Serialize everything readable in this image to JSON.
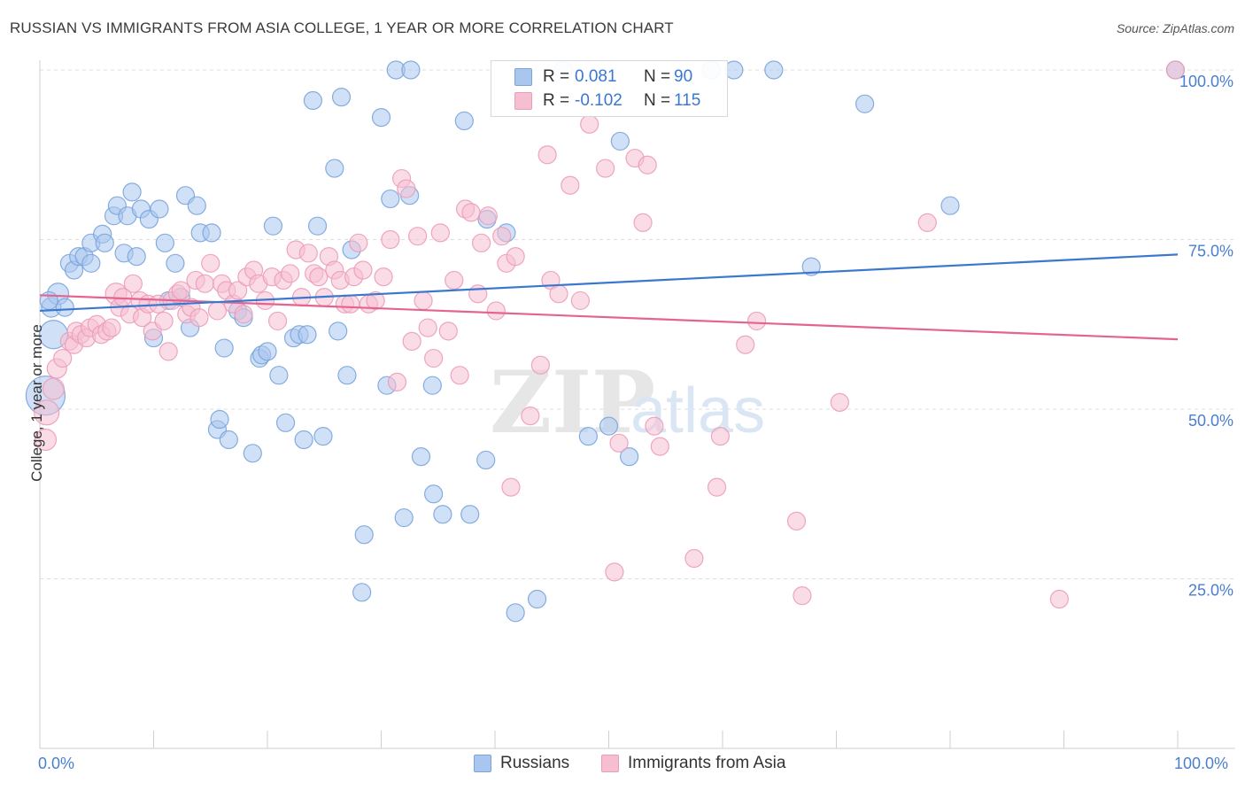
{
  "title": "RUSSIAN VS IMMIGRANTS FROM ASIA COLLEGE, 1 YEAR OR MORE CORRELATION CHART",
  "source_label": "Source: ZipAtlas.com",
  "watermark": {
    "zip": "ZIP",
    "atlas": "atlas"
  },
  "colors": {
    "blue_fill": "#a9c6ee",
    "blue_stroke": "#7aa4dc",
    "blue_line": "#3a78d0",
    "pink_fill": "#f6bfd1",
    "pink_stroke": "#ec9cb7",
    "pink_line": "#e4648f",
    "axis_label": "#4a7fd0",
    "grid": "#dddddd"
  },
  "legend": {
    "rows": [
      {
        "r_label": "R =",
        "r_value": "0.081",
        "n_label": "N =",
        "n_value": "90"
      },
      {
        "r_label": "R =",
        "r_value": "-0.102",
        "n_label": "N =",
        "n_value": "115"
      }
    ]
  },
  "bottom_legend": [
    "Russians",
    "Immigrants from Asia"
  ],
  "chart_data": {
    "type": "scatter",
    "title": "RUSSIAN VS IMMIGRANTS FROM ASIA COLLEGE, 1 YEAR OR MORE CORRELATION CHART",
    "xlabel": "",
    "ylabel": "College, 1 year or more",
    "x_tick_labels": [
      "0.0%",
      "100.0%"
    ],
    "y_tick_labels": [
      "25.0%",
      "50.0%",
      "75.0%",
      "100.0%"
    ],
    "xlim": [
      0,
      100
    ],
    "ylim": [
      0,
      102
    ],
    "grid": true,
    "legend_position": "top-center",
    "series": [
      {
        "name": "Russians",
        "r": 0.081,
        "n": 90,
        "trend": {
          "x": [
            0,
            100
          ],
          "y": [
            64.5,
            72.8
          ]
        },
        "points": [
          [
            0.5,
            52,
            22
          ],
          [
            1.2,
            61,
            16
          ],
          [
            1.0,
            65,
            11
          ],
          [
            1.6,
            67,
            12
          ],
          [
            2.2,
            65,
            10
          ],
          [
            2.6,
            71.5,
            10
          ],
          [
            3.0,
            70.5,
            10
          ],
          [
            3.4,
            72.5,
            10
          ],
          [
            3.9,
            72.5,
            10
          ],
          [
            4.5,
            71.5,
            10
          ],
          [
            4.5,
            74.5,
            10
          ],
          [
            5.5,
            75.8,
            10
          ],
          [
            5.7,
            74.5,
            10
          ],
          [
            6.5,
            78.5,
            10
          ],
          [
            6.8,
            80,
            10
          ],
          [
            7.4,
            73,
            10
          ],
          [
            7.7,
            78.5,
            10
          ],
          [
            8.1,
            82,
            10
          ],
          [
            8.5,
            72.5,
            10
          ],
          [
            8.9,
            79.5,
            10
          ],
          [
            9.6,
            78,
            10
          ],
          [
            10.0,
            60.5,
            10
          ],
          [
            10.5,
            79.5,
            10
          ],
          [
            11.0,
            74.5,
            10
          ],
          [
            11.3,
            66,
            10
          ],
          [
            11.9,
            71.5,
            10
          ],
          [
            12.4,
            66.5,
            10
          ],
          [
            12.8,
            81.5,
            10
          ],
          [
            13.2,
            62,
            10
          ],
          [
            13.8,
            80,
            10
          ],
          [
            14.1,
            76,
            10
          ],
          [
            15.1,
            76,
            10
          ],
          [
            15.6,
            47,
            10
          ],
          [
            15.8,
            48.5,
            10
          ],
          [
            16.2,
            59,
            10
          ],
          [
            16.6,
            45.5,
            10
          ],
          [
            17.4,
            64.5,
            10
          ],
          [
            17.9,
            63.5,
            10
          ],
          [
            18.7,
            43.5,
            10
          ],
          [
            19.3,
            57.5,
            10
          ],
          [
            19.5,
            58,
            10
          ],
          [
            20.0,
            58.5,
            10
          ],
          [
            20.5,
            77,
            10
          ],
          [
            21.0,
            55,
            10
          ],
          [
            21.6,
            48,
            10
          ],
          [
            22.3,
            60.5,
            10
          ],
          [
            22.8,
            61,
            10
          ],
          [
            23.2,
            45.5,
            10
          ],
          [
            23.5,
            61,
            10
          ],
          [
            24.0,
            95.5,
            10
          ],
          [
            24.4,
            77,
            10
          ],
          [
            24.9,
            46,
            10
          ],
          [
            25.9,
            85.5,
            10
          ],
          [
            26.2,
            61.5,
            10
          ],
          [
            26.5,
            96,
            10
          ],
          [
            27.0,
            55,
            10
          ],
          [
            27.4,
            73.5,
            10
          ],
          [
            28.5,
            31.5,
            10
          ],
          [
            28.3,
            23,
            10
          ],
          [
            30.0,
            93,
            10
          ],
          [
            30.5,
            53.5,
            10
          ],
          [
            30.8,
            81,
            10
          ],
          [
            31.3,
            100,
            10
          ],
          [
            32.0,
            34,
            10
          ],
          [
            32.5,
            81.5,
            10
          ],
          [
            32.6,
            100,
            10
          ],
          [
            33.5,
            43,
            10
          ],
          [
            34.5,
            53.5,
            10
          ],
          [
            34.6,
            37.5,
            10
          ],
          [
            35.4,
            34.5,
            10
          ],
          [
            37.3,
            92.5,
            10
          ],
          [
            37.8,
            34.5,
            10
          ],
          [
            39.2,
            42.5,
            10
          ],
          [
            39.3,
            78,
            10
          ],
          [
            41.0,
            76,
            10
          ],
          [
            41.8,
            20,
            10
          ],
          [
            43.7,
            22,
            10
          ],
          [
            46.0,
            100,
            10
          ],
          [
            48.2,
            46,
            10
          ],
          [
            50.0,
            47.5,
            10
          ],
          [
            51.0,
            89.5,
            10
          ],
          [
            51.8,
            43,
            10
          ],
          [
            59.0,
            100,
            10
          ],
          [
            61.0,
            100,
            10
          ],
          [
            64.5,
            100,
            10
          ],
          [
            67.8,
            71,
            10
          ],
          [
            72.5,
            95,
            10
          ],
          [
            80.0,
            80,
            10
          ],
          [
            0.8,
            66,
            10
          ],
          [
            99.8,
            100,
            10
          ]
        ]
      },
      {
        "name": "Immigrants from Asia",
        "r": -0.102,
        "n": 115,
        "trend": {
          "x": [
            0,
            100
          ],
          "y": [
            66.8,
            60.3
          ]
        },
        "points": [
          [
            0.5,
            45.5,
            12
          ],
          [
            0.6,
            49.5,
            14
          ],
          [
            1.2,
            53,
            12
          ],
          [
            1.5,
            56,
            11
          ],
          [
            2.0,
            57.5,
            10
          ],
          [
            2.6,
            60,
            10
          ],
          [
            3.0,
            59.5,
            10
          ],
          [
            3.2,
            61.5,
            10
          ],
          [
            3.6,
            61,
            10
          ],
          [
            4.1,
            60.5,
            10
          ],
          [
            4.4,
            62,
            10
          ],
          [
            5.0,
            62.5,
            10
          ],
          [
            5.4,
            61,
            10
          ],
          [
            5.9,
            61.5,
            10
          ],
          [
            6.3,
            62,
            10
          ],
          [
            6.7,
            67,
            12
          ],
          [
            7.0,
            65,
            10
          ],
          [
            7.3,
            66.5,
            10
          ],
          [
            7.9,
            64,
            10
          ],
          [
            8.2,
            68.5,
            10
          ],
          [
            8.8,
            66,
            10
          ],
          [
            9.0,
            63.5,
            10
          ],
          [
            9.5,
            65.5,
            10
          ],
          [
            9.9,
            61.5,
            10
          ],
          [
            10.4,
            65.5,
            10
          ],
          [
            10.9,
            63,
            10
          ],
          [
            11.3,
            58.5,
            10
          ],
          [
            11.6,
            66,
            10
          ],
          [
            12.1,
            67,
            10
          ],
          [
            12.4,
            67.5,
            10
          ],
          [
            12.9,
            64,
            10
          ],
          [
            13.3,
            65,
            10
          ],
          [
            13.7,
            69,
            10
          ],
          [
            14.0,
            63.5,
            10
          ],
          [
            14.5,
            68.5,
            10
          ],
          [
            15.0,
            71.5,
            10
          ],
          [
            15.6,
            64.5,
            10
          ],
          [
            16.0,
            68.5,
            10
          ],
          [
            16.4,
            67.5,
            10
          ],
          [
            17.0,
            65.5,
            10
          ],
          [
            17.4,
            67.5,
            10
          ],
          [
            17.9,
            64,
            10
          ],
          [
            18.2,
            69.5,
            10
          ],
          [
            18.8,
            70.5,
            10
          ],
          [
            19.2,
            68.5,
            10
          ],
          [
            19.8,
            66,
            10
          ],
          [
            20.4,
            69.5,
            10
          ],
          [
            20.9,
            63,
            10
          ],
          [
            21.4,
            69,
            10
          ],
          [
            22.0,
            70,
            10
          ],
          [
            22.5,
            73.5,
            10
          ],
          [
            23.0,
            66.5,
            10
          ],
          [
            23.6,
            73,
            10
          ],
          [
            24.1,
            70,
            10
          ],
          [
            24.5,
            69.5,
            10
          ],
          [
            25.0,
            66.5,
            10
          ],
          [
            25.4,
            72.5,
            10
          ],
          [
            25.9,
            70.5,
            10
          ],
          [
            26.4,
            69,
            10
          ],
          [
            26.8,
            65.5,
            10
          ],
          [
            27.3,
            65.5,
            10
          ],
          [
            27.6,
            69.5,
            10
          ],
          [
            28.0,
            74.5,
            10
          ],
          [
            28.4,
            70.5,
            10
          ],
          [
            28.9,
            65.5,
            10
          ],
          [
            29.5,
            66,
            10
          ],
          [
            30.2,
            69.5,
            10
          ],
          [
            30.8,
            75,
            10
          ],
          [
            31.4,
            54,
            10
          ],
          [
            31.8,
            84,
            10
          ],
          [
            32.2,
            82.5,
            10
          ],
          [
            32.7,
            60,
            10
          ],
          [
            33.2,
            75.5,
            10
          ],
          [
            33.7,
            66,
            10
          ],
          [
            34.1,
            62,
            10
          ],
          [
            34.6,
            57.5,
            10
          ],
          [
            35.2,
            76,
            10
          ],
          [
            35.9,
            61.5,
            10
          ],
          [
            36.4,
            69,
            10
          ],
          [
            36.9,
            55,
            10
          ],
          [
            37.4,
            79.5,
            10
          ],
          [
            37.9,
            79,
            10
          ],
          [
            38.5,
            67,
            10
          ],
          [
            38.8,
            74.5,
            10
          ],
          [
            39.4,
            78.5,
            10
          ],
          [
            40.1,
            64.5,
            10
          ],
          [
            40.6,
            75.5,
            10
          ],
          [
            41.0,
            71.5,
            10
          ],
          [
            41.4,
            38.5,
            10
          ],
          [
            41.8,
            72.5,
            10
          ],
          [
            43.1,
            49,
            10
          ],
          [
            44.0,
            56.5,
            10
          ],
          [
            44.6,
            87.5,
            10
          ],
          [
            44.9,
            69,
            10
          ],
          [
            45.6,
            67,
            10
          ],
          [
            46.6,
            83,
            10
          ],
          [
            47.5,
            66,
            10
          ],
          [
            48.3,
            92,
            10
          ],
          [
            49.7,
            85.5,
            10
          ],
          [
            50.5,
            26,
            10
          ],
          [
            50.9,
            45,
            10
          ],
          [
            52.3,
            87,
            10
          ],
          [
            53.0,
            77.5,
            10
          ],
          [
            53.4,
            86,
            10
          ],
          [
            54.0,
            47.5,
            10
          ],
          [
            54.5,
            44.5,
            10
          ],
          [
            57.5,
            28,
            10
          ],
          [
            59.5,
            38.5,
            10
          ],
          [
            59.8,
            46,
            10
          ],
          [
            62.0,
            59.5,
            10
          ],
          [
            63.0,
            63,
            10
          ],
          [
            66.5,
            33.5,
            10
          ],
          [
            67.0,
            22.5,
            10
          ],
          [
            70.3,
            51,
            10
          ],
          [
            78.0,
            77.5,
            10
          ],
          [
            89.6,
            22,
            10
          ],
          [
            99.8,
            100,
            10
          ]
        ]
      }
    ]
  }
}
